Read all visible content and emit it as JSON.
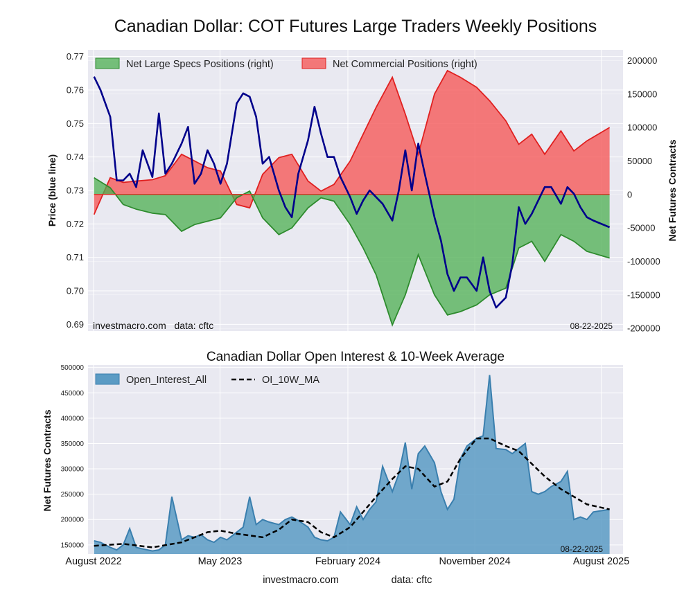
{
  "figure": {
    "title": "Canadian Dollar: COT Futures Large Traders Weekly Positions",
    "footer_site": "investmacro.com",
    "footer_data": "data: cftc"
  },
  "colors": {
    "background": "#e9e9f1",
    "grid": "#ffffff",
    "price_line": "#00008b",
    "specs_fill": "#4caf50",
    "specs_line": "#2e8b2e",
    "comm_fill": "#f55a5a",
    "comm_line": "#e02020",
    "oi_fill": "#5b9bc4",
    "oi_line": "#3a7fae",
    "ma_line": "#000000"
  },
  "chart_data": [
    {
      "type": "line",
      "title": "",
      "ylabel": "Price (blue line)",
      "ylabel_right": "Net Futures Contracts",
      "ylim": [
        0.688,
        0.772
      ],
      "ylim_right": [
        -204000,
        216000
      ],
      "yticks": [
        "0.69",
        "0.70",
        "0.71",
        "0.72",
        "0.73",
        "0.74",
        "0.75",
        "0.76",
        "0.77"
      ],
      "yticks_right": [
        "-200000",
        "-150000",
        "-100000",
        "-50000",
        "0",
        "50000",
        "100000",
        "150000",
        "200000"
      ],
      "x_range": [
        "2022-07-20",
        "2025-09-17"
      ],
      "grid": true,
      "legend_position": "top-left",
      "watermark_left": "investmacro.com   data: cftc",
      "watermark_right": "08-22-2025",
      "series": [
        {
          "name": "Net Large Specs Positions (right)",
          "style": "area",
          "axis": "right",
          "x": [
            "2022-08-02",
            "2022-09-06",
            "2022-10-04",
            "2022-11-01",
            "2022-12-06",
            "2023-01-03",
            "2023-02-07",
            "2023-03-07",
            "2023-04-04",
            "2023-05-02",
            "2023-06-06",
            "2023-07-04",
            "2023-08-01",
            "2023-09-05",
            "2023-10-03",
            "2023-11-07",
            "2023-12-05",
            "2024-01-02",
            "2024-02-06",
            "2024-03-05",
            "2024-04-02",
            "2024-05-07",
            "2024-06-04",
            "2024-07-02",
            "2024-08-06",
            "2024-09-03",
            "2024-10-01",
            "2024-11-05",
            "2024-12-03",
            "2025-01-07",
            "2025-02-04",
            "2025-03-04",
            "2025-04-01",
            "2025-05-06",
            "2025-06-03",
            "2025-07-01",
            "2025-08-19"
          ],
          "values": [
            25000,
            10000,
            -15000,
            -22000,
            -28000,
            -30000,
            -55000,
            -45000,
            -40000,
            -35000,
            -5000,
            5000,
            -35000,
            -60000,
            -50000,
            -20000,
            -5000,
            -10000,
            -45000,
            -80000,
            -120000,
            -195000,
            -150000,
            -90000,
            -150000,
            -180000,
            -175000,
            -165000,
            -150000,
            -140000,
            -80000,
            -70000,
            -100000,
            -60000,
            -70000,
            -85000,
            -95000
          ]
        },
        {
          "name": "Net Commercial Positions (right)",
          "style": "area",
          "axis": "right",
          "x": [
            "2022-08-02",
            "2022-09-06",
            "2022-10-04",
            "2022-11-01",
            "2022-12-06",
            "2023-01-03",
            "2023-02-07",
            "2023-03-07",
            "2023-04-04",
            "2023-05-02",
            "2023-06-06",
            "2023-07-04",
            "2023-08-01",
            "2023-09-05",
            "2023-10-03",
            "2023-11-07",
            "2023-12-05",
            "2024-01-02",
            "2024-02-06",
            "2024-03-05",
            "2024-04-02",
            "2024-05-07",
            "2024-06-04",
            "2024-07-02",
            "2024-08-06",
            "2024-09-03",
            "2024-10-01",
            "2024-11-05",
            "2024-12-03",
            "2025-01-07",
            "2025-02-04",
            "2025-03-04",
            "2025-04-01",
            "2025-05-06",
            "2025-06-03",
            "2025-07-01",
            "2025-08-19"
          ],
          "values": [
            -30000,
            25000,
            18000,
            20000,
            22000,
            28000,
            60000,
            50000,
            40000,
            35000,
            -15000,
            -20000,
            30000,
            55000,
            60000,
            20000,
            5000,
            15000,
            50000,
            90000,
            130000,
            175000,
            120000,
            60000,
            150000,
            185000,
            175000,
            160000,
            140000,
            110000,
            75000,
            90000,
            60000,
            95000,
            65000,
            80000,
            100000
          ]
        },
        {
          "name": "Price",
          "style": "line",
          "axis": "left",
          "x": [
            "2022-08-02",
            "2022-08-16",
            "2022-09-06",
            "2022-09-20",
            "2022-10-04",
            "2022-10-18",
            "2022-11-01",
            "2022-11-15",
            "2022-12-06",
            "2022-12-20",
            "2023-01-03",
            "2023-01-17",
            "2023-02-07",
            "2023-02-21",
            "2023-03-07",
            "2023-03-21",
            "2023-04-04",
            "2023-04-18",
            "2023-05-02",
            "2023-05-16",
            "2023-06-06",
            "2023-06-20",
            "2023-07-04",
            "2023-07-18",
            "2023-08-01",
            "2023-08-15",
            "2023-09-05",
            "2023-09-19",
            "2023-10-03",
            "2023-10-17",
            "2023-11-07",
            "2023-11-21",
            "2023-12-05",
            "2023-12-19",
            "2024-01-02",
            "2024-01-16",
            "2024-02-06",
            "2024-02-20",
            "2024-03-05",
            "2024-03-19",
            "2024-04-02",
            "2024-04-16",
            "2024-05-07",
            "2024-05-21",
            "2024-06-04",
            "2024-06-18",
            "2024-07-02",
            "2024-07-16",
            "2024-08-06",
            "2024-08-20",
            "2024-09-03",
            "2024-09-17",
            "2024-10-01",
            "2024-10-15",
            "2024-11-05",
            "2024-11-19",
            "2024-12-03",
            "2024-12-17",
            "2025-01-07",
            "2025-01-21",
            "2025-02-04",
            "2025-02-18",
            "2025-03-04",
            "2025-03-18",
            "2025-04-01",
            "2025-04-15",
            "2025-05-06",
            "2025-05-20",
            "2025-06-03",
            "2025-06-17",
            "2025-07-01",
            "2025-07-15",
            "2025-08-19"
          ],
          "values": [
            0.764,
            0.76,
            0.752,
            0.733,
            0.733,
            0.735,
            0.731,
            0.742,
            0.734,
            0.753,
            0.735,
            0.738,
            0.744,
            0.749,
            0.732,
            0.735,
            0.742,
            0.738,
            0.732,
            0.738,
            0.756,
            0.759,
            0.758,
            0.752,
            0.738,
            0.74,
            0.73,
            0.725,
            0.722,
            0.735,
            0.745,
            0.755,
            0.747,
            0.74,
            0.74,
            0.734,
            0.728,
            0.723,
            0.727,
            0.73,
            0.728,
            0.726,
            0.721,
            0.73,
            0.742,
            0.73,
            0.744,
            0.735,
            0.722,
            0.715,
            0.705,
            0.7,
            0.704,
            0.704,
            0.7,
            0.71,
            0.7,
            0.695,
            0.698,
            0.708,
            0.725,
            0.72,
            0.723,
            0.727,
            0.731,
            0.731,
            0.726,
            0.731,
            0.729,
            0.725,
            0.722,
            0.721,
            0.719
          ]
        }
      ]
    },
    {
      "type": "area",
      "title": "Canadian Dollar Open Interest & 10-Week Average",
      "ylabel": "Net Futures Contracts",
      "ylim": [
        132000,
        505000
      ],
      "yticks": [
        "150000",
        "200000",
        "250000",
        "300000",
        "350000",
        "400000",
        "450000",
        "500000"
      ],
      "x_range": [
        "2022-07-20",
        "2025-09-17"
      ],
      "xticks": [
        "August 2022",
        "May 2023",
        "February 2024",
        "November 2024",
        "August 2025"
      ],
      "grid": true,
      "legend_position": "top-left",
      "watermark_right": "08-22-2025",
      "series": [
        {
          "name": "Open_Interest_All",
          "style": "area",
          "x": [
            "2022-08-02",
            "2022-08-16",
            "2022-09-06",
            "2022-09-20",
            "2022-10-04",
            "2022-10-18",
            "2022-11-01",
            "2022-11-15",
            "2022-12-06",
            "2022-12-20",
            "2023-01-03",
            "2023-01-17",
            "2023-02-07",
            "2023-02-21",
            "2023-03-07",
            "2023-03-21",
            "2023-04-04",
            "2023-04-18",
            "2023-05-02",
            "2023-05-16",
            "2023-06-06",
            "2023-06-20",
            "2023-07-04",
            "2023-07-18",
            "2023-08-01",
            "2023-08-15",
            "2023-09-05",
            "2023-09-19",
            "2023-10-03",
            "2023-10-17",
            "2023-11-07",
            "2023-11-21",
            "2023-12-05",
            "2023-12-19",
            "2024-01-02",
            "2024-01-16",
            "2024-02-06",
            "2024-02-20",
            "2024-03-05",
            "2024-03-19",
            "2024-04-02",
            "2024-04-16",
            "2024-05-07",
            "2024-05-21",
            "2024-06-04",
            "2024-06-18",
            "2024-07-02",
            "2024-07-16",
            "2024-08-06",
            "2024-08-20",
            "2024-09-03",
            "2024-09-17",
            "2024-10-01",
            "2024-10-15",
            "2024-11-05",
            "2024-11-19",
            "2024-12-03",
            "2024-12-17",
            "2025-01-07",
            "2025-01-21",
            "2025-02-04",
            "2025-02-18",
            "2025-03-04",
            "2025-03-18",
            "2025-04-01",
            "2025-04-15",
            "2025-05-06",
            "2025-05-20",
            "2025-06-03",
            "2025-06-17",
            "2025-07-01",
            "2025-07-15",
            "2025-08-19"
          ],
          "values": [
            158000,
            155000,
            145000,
            140000,
            150000,
            182000,
            145000,
            142000,
            138000,
            140000,
            150000,
            245000,
            160000,
            168000,
            165000,
            170000,
            160000,
            155000,
            165000,
            160000,
            175000,
            185000,
            245000,
            190000,
            200000,
            195000,
            190000,
            200000,
            205000,
            198000,
            185000,
            165000,
            160000,
            158000,
            165000,
            215000,
            190000,
            225000,
            200000,
            220000,
            235000,
            305000,
            255000,
            290000,
            352000,
            260000,
            330000,
            345000,
            312000,
            255000,
            220000,
            240000,
            320000,
            345000,
            360000,
            365000,
            485000,
            340000,
            338000,
            330000,
            340000,
            350000,
            255000,
            250000,
            255000,
            265000,
            275000,
            295000,
            200000,
            205000,
            200000,
            215000,
            220000
          ]
        },
        {
          "name": "OI_10W_MA",
          "style": "dashed-line",
          "x": [
            "2022-08-02",
            "2022-10-04",
            "2022-12-06",
            "2023-02-07",
            "2023-04-04",
            "2023-05-02",
            "2023-06-06",
            "2023-08-01",
            "2023-09-05",
            "2023-10-03",
            "2023-11-07",
            "2023-12-05",
            "2024-01-02",
            "2024-02-06",
            "2024-03-05",
            "2024-04-02",
            "2024-05-07",
            "2024-06-04",
            "2024-07-02",
            "2024-08-06",
            "2024-09-03",
            "2024-10-01",
            "2024-11-05",
            "2024-12-03",
            "2025-01-07",
            "2025-02-04",
            "2025-03-04",
            "2025-04-01",
            "2025-05-06",
            "2025-06-03",
            "2025-07-01",
            "2025-08-19"
          ],
          "values": [
            148000,
            152000,
            145000,
            155000,
            175000,
            178000,
            172000,
            165000,
            180000,
            200000,
            195000,
            175000,
            165000,
            185000,
            215000,
            245000,
            280000,
            305000,
            300000,
            265000,
            275000,
            320000,
            360000,
            360000,
            345000,
            335000,
            310000,
            285000,
            260000,
            245000,
            230000,
            220000
          ]
        }
      ]
    }
  ]
}
